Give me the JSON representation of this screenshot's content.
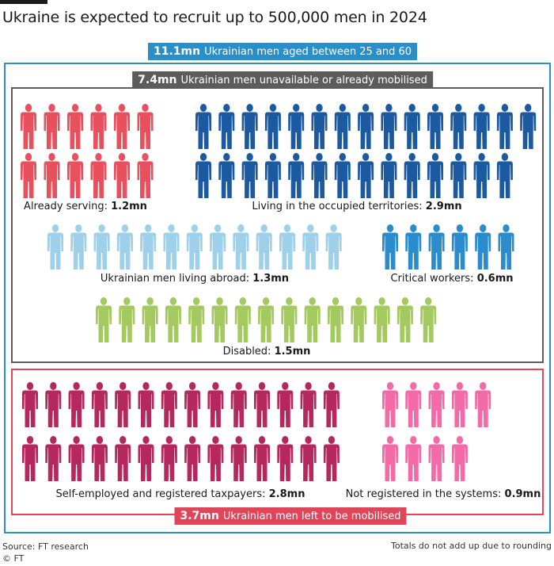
{
  "header": {
    "title": "Ukraine is expected to recruit up to 500,000 men in 2024"
  },
  "badges": {
    "total": {
      "value": "11.1mn",
      "text": "Ukrainian men aged between 25 and 60",
      "color": "#2a8fc9"
    },
    "unavailable": {
      "value": "7.4mn",
      "text": "Ukrainian men unavailable or already mobilised",
      "color": "#5c5c5c"
    },
    "left": {
      "value": "3.7mn",
      "text": "Ukrainian men left to be mobilised",
      "color": "#e0455a"
    }
  },
  "chart_data": {
    "type": "pictogram",
    "groups": [
      {
        "key": "already_serving",
        "label": "Already serving:",
        "value_label": "1.2mn",
        "value_mn": 1.2,
        "figures": 12,
        "color": "#e8505e",
        "category": "unavailable"
      },
      {
        "key": "occupied",
        "label": "Living in the occupied territories:",
        "value_label": "2.9mn",
        "value_mn": 2.9,
        "figures": 29,
        "color": "#1b5aa0",
        "category": "unavailable"
      },
      {
        "key": "abroad",
        "label": "Ukrainian men living abroad:",
        "value_label": "1.3mn",
        "value_mn": 1.3,
        "figures": 13,
        "color": "#9fd0ea",
        "category": "unavailable"
      },
      {
        "key": "critical",
        "label": "Critical workers:",
        "value_label": "0.6mn",
        "value_mn": 0.6,
        "figures": 6,
        "color": "#2b8ccd",
        "category": "unavailable"
      },
      {
        "key": "disabled",
        "label": "Disabled:",
        "value_label": "1.5mn",
        "value_mn": 1.5,
        "figures": 15,
        "color": "#a3c95f",
        "category": "unavailable"
      },
      {
        "key": "taxpayers",
        "label": "Self-employed and registered taxpayers:",
        "value_label": "2.8mn",
        "value_mn": 2.8,
        "figures": 28,
        "color": "#b5285e",
        "category": "left"
      },
      {
        "key": "unregistered",
        "label": "Not registered in the systems:",
        "value_label": "0.9mn",
        "value_mn": 0.9,
        "figures": 9,
        "color": "#f36aa6",
        "category": "left"
      }
    ]
  },
  "footer": {
    "source": "Source: FT research",
    "copyright": "© FT",
    "note": "Totals do not add up due to rounding"
  }
}
